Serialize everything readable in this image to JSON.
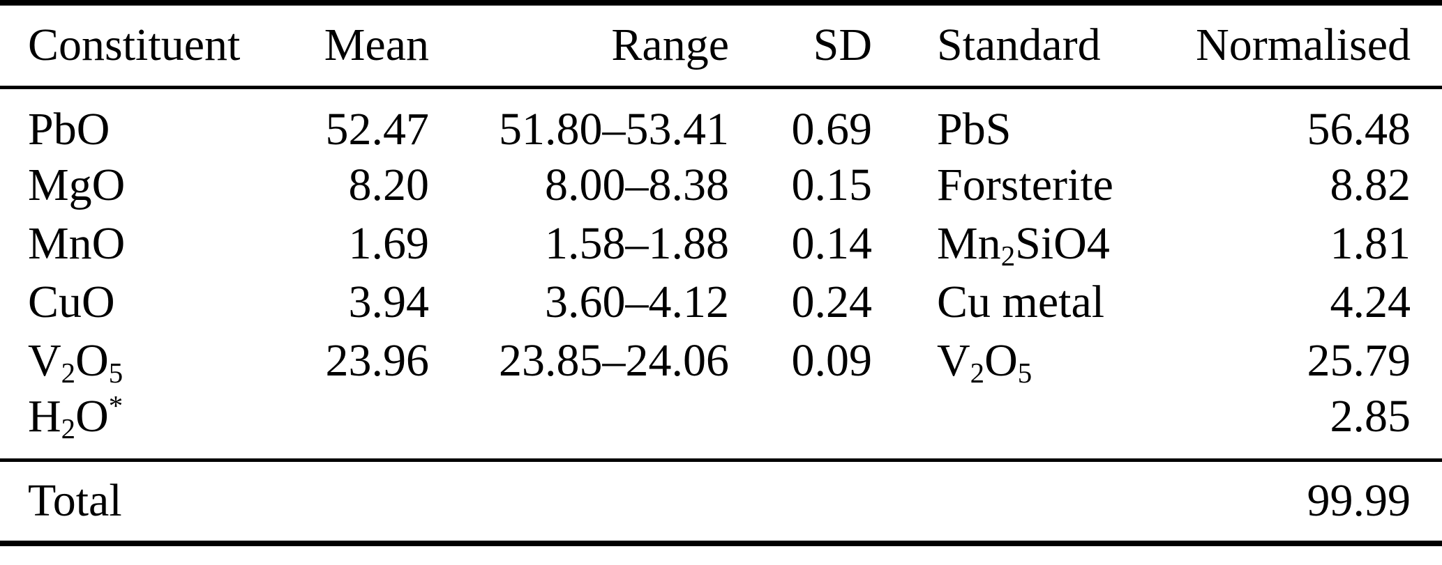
{
  "colors": {
    "text": "#000000",
    "background": "#ffffff",
    "rule": "#000000"
  },
  "table": {
    "columns": [
      {
        "key": "constituent",
        "label": "Constituent",
        "align": "left"
      },
      {
        "key": "mean",
        "label": "Mean",
        "align": "right"
      },
      {
        "key": "range",
        "label": "Range",
        "align": "right"
      },
      {
        "key": "sd",
        "label": "SD",
        "align": "right"
      },
      {
        "key": "standard",
        "label": "Standard",
        "align": "left"
      },
      {
        "key": "normalised",
        "label": "Normalised",
        "align": "right"
      }
    ],
    "rows": [
      {
        "constituent": [
          {
            "text": "PbO"
          }
        ],
        "mean": "52.47",
        "range": "51.80–53.41",
        "sd": "0.69",
        "standard": [
          {
            "text": "PbS"
          }
        ],
        "normalised": "56.48"
      },
      {
        "constituent": [
          {
            "text": "MgO"
          }
        ],
        "mean": "8.20",
        "range": "8.00–8.38",
        "sd": "0.15",
        "standard": [
          {
            "text": "Forsterite"
          }
        ],
        "normalised": "8.82"
      },
      {
        "constituent": [
          {
            "text": "MnO"
          }
        ],
        "mean": "1.69",
        "range": "1.58–1.88",
        "sd": "0.14",
        "standard": [
          {
            "text": "Mn"
          },
          {
            "text": "2",
            "style": "sub"
          },
          {
            "text": "SiO4"
          }
        ],
        "normalised": "1.81"
      },
      {
        "constituent": [
          {
            "text": "CuO"
          }
        ],
        "mean": "3.94",
        "range": "3.60–4.12",
        "sd": "0.24",
        "standard": [
          {
            "text": "Cu metal"
          }
        ],
        "normalised": "4.24"
      },
      {
        "constituent": [
          {
            "text": "V"
          },
          {
            "text": "2",
            "style": "sub"
          },
          {
            "text": "O"
          },
          {
            "text": "5",
            "style": "sub"
          }
        ],
        "mean": "23.96",
        "range": "23.85–24.06",
        "sd": "0.09",
        "standard": [
          {
            "text": "V"
          },
          {
            "text": "2",
            "style": "sub"
          },
          {
            "text": "O"
          },
          {
            "text": "5",
            "style": "sub"
          }
        ],
        "normalised": "25.79"
      },
      {
        "constituent": [
          {
            "text": "H"
          },
          {
            "text": "2",
            "style": "sub"
          },
          {
            "text": "O"
          },
          {
            "text": "*",
            "style": "sup"
          }
        ],
        "mean": "",
        "range": "",
        "sd": "",
        "standard": [],
        "normalised": "2.85"
      }
    ],
    "footer": {
      "label": "Total",
      "mean": "",
      "range": "",
      "sd": "",
      "standard": "",
      "normalised": "99.99"
    }
  }
}
